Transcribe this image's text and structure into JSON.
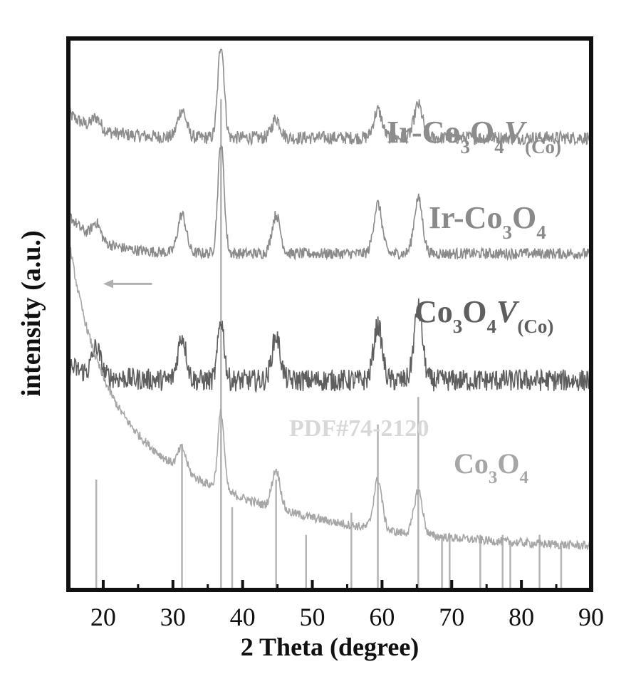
{
  "chart_data": {
    "type": "line",
    "xlabel": "2 Theta (degree)",
    "ylabel": "intensity (a.u.)",
    "xlim": [
      15,
      90
    ],
    "xticks": [
      20,
      30,
      40,
      50,
      60,
      70,
      80,
      90
    ],
    "y_ticks_shown": false,
    "grid": false,
    "legend": "inline labels beside each trace",
    "series": [
      {
        "name": "Ir-Co3O4V(Co)",
        "label_parts": [
          "Ir-Co",
          "3",
          "O",
          "4",
          "V",
          "(Co)"
        ],
        "color": "#8c8c8c",
        "baseline": 0.82,
        "start_rise": 0.05,
        "decay": 0.0,
        "noise": 0.012,
        "peaks": [
          [
            19.0,
            0.02
          ],
          [
            31.3,
            0.05
          ],
          [
            36.9,
            0.17
          ],
          [
            44.8,
            0.035
          ],
          [
            59.4,
            0.05
          ],
          [
            65.2,
            0.06
          ]
        ]
      },
      {
        "name": "Ir-Co3O4",
        "label_parts": [
          "Ir-Co",
          "3",
          "O",
          "4"
        ],
        "color": "#8a8a8a",
        "baseline": 0.61,
        "start_rise": 0.08,
        "decay": 0.0,
        "noise": 0.01,
        "peaks": [
          [
            19.0,
            0.03
          ],
          [
            31.3,
            0.07
          ],
          [
            36.9,
            0.2
          ],
          [
            44.8,
            0.07
          ],
          [
            59.4,
            0.09
          ],
          [
            65.2,
            0.1
          ]
        ]
      },
      {
        "name": "Co3O4V(Co)",
        "label_parts": [
          "Co",
          "3",
          "O",
          "4",
          "V",
          "(Co)"
        ],
        "color": "#5e5e5e",
        "baseline": 0.38,
        "start_rise": 0.03,
        "decay": 0.0,
        "noise": 0.02,
        "peaks": [
          [
            19.0,
            0.05
          ],
          [
            31.3,
            0.08
          ],
          [
            36.9,
            0.11
          ],
          [
            44.8,
            0.08
          ],
          [
            59.4,
            0.1
          ],
          [
            65.2,
            0.13
          ]
        ]
      },
      {
        "name": "Co3O4",
        "label_parts": [
          "Co",
          "3",
          "O",
          "4"
        ],
        "color": "#a6a6a6",
        "baseline": 0.07,
        "start_rise": 0.3,
        "decay": 0.008,
        "noise": 0.008,
        "peaks": [
          [
            31.3,
            0.04
          ],
          [
            36.9,
            0.14
          ],
          [
            44.8,
            0.07
          ],
          [
            59.4,
            0.09
          ],
          [
            65.2,
            0.08
          ]
        ]
      }
    ],
    "reference": {
      "name": "PDF#74-2120",
      "color": "#b4b4b4",
      "lines": [
        [
          19.0,
          0.2
        ],
        [
          31.3,
          0.26
        ],
        [
          36.9,
          0.89
        ],
        [
          38.5,
          0.15
        ],
        [
          44.8,
          0.2
        ],
        [
          49.1,
          0.1
        ],
        [
          55.6,
          0.14
        ],
        [
          59.4,
          0.3
        ],
        [
          65.2,
          0.35
        ],
        [
          68.6,
          0.1
        ],
        [
          69.7,
          0.1
        ],
        [
          74.1,
          0.1
        ],
        [
          77.3,
          0.1
        ],
        [
          78.4,
          0.09
        ],
        [
          82.6,
          0.1
        ],
        [
          85.7,
          0.08
        ]
      ]
    },
    "annotation_arrow": {
      "from_x": 27.0,
      "to_x": 20.0,
      "y": 0.555,
      "color": "#b0b0b0"
    }
  }
}
